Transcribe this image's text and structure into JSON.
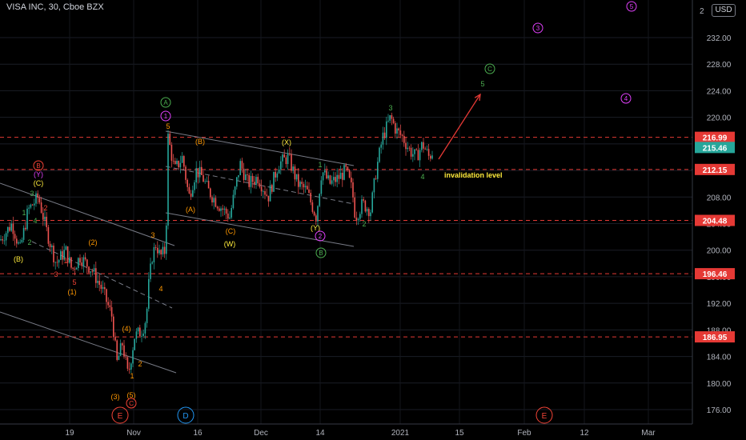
{
  "header": {
    "title": "VISA INC, 30, Cboe BZX",
    "currency": "USD"
  },
  "chart_data": {
    "type": "candlestick",
    "title": "VISA INC, 30, Cboe BZX",
    "ylim": [
      174,
      236
    ],
    "y_ticks": [
      "176.00",
      "180.00",
      "184.00",
      "188.00",
      "192.00",
      "196.00",
      "200.00",
      "204.00",
      "208.00",
      "212.00",
      "216.00",
      "220.00",
      "224.00",
      "228.00",
      "232.00"
    ],
    "y_top_partial": "2",
    "x_ticks": [
      {
        "label": "19",
        "x": 87
      },
      {
        "label": "Nov",
        "x": 167
      },
      {
        "label": "16",
        "x": 247
      },
      {
        "label": "Dec",
        "x": 326
      },
      {
        "label": "14",
        "x": 400
      },
      {
        "label": "2021",
        "x": 500
      },
      {
        "label": "15",
        "x": 574
      },
      {
        "label": "Feb",
        "x": 655
      },
      {
        "label": "12",
        "x": 730
      },
      {
        "label": "Mar",
        "x": 810
      }
    ],
    "levels": [
      {
        "value": 216.99,
        "label": "216.99",
        "kind": "red"
      },
      {
        "value": 215.46,
        "label": "215.46",
        "kind": "green"
      },
      {
        "value": 212.15,
        "label": "212.15",
        "kind": "red"
      },
      {
        "value": 204.48,
        "label": "204.48",
        "kind": "red"
      },
      {
        "value": 196.46,
        "label": "196.46",
        "kind": "red"
      },
      {
        "value": 186.95,
        "label": "186.95",
        "kind": "red"
      }
    ],
    "price_path": [
      [
        0,
        201.5
      ],
      [
        15,
        204
      ],
      [
        25,
        200
      ],
      [
        35,
        206
      ],
      [
        48,
        208
      ],
      [
        58,
        203
      ],
      [
        70,
        198
      ],
      [
        82,
        200
      ],
      [
        90,
        197
      ],
      [
        100,
        199
      ],
      [
        115,
        197
      ],
      [
        128,
        194
      ],
      [
        140,
        190
      ],
      [
        146,
        183
      ],
      [
        153,
        186
      ],
      [
        160,
        181
      ],
      [
        168,
        187
      ],
      [
        178,
        188
      ],
      [
        183,
        190
      ],
      [
        185,
        194
      ],
      [
        190,
        199
      ],
      [
        195,
        201
      ],
      [
        200,
        199
      ],
      [
        207,
        200
      ],
      [
        210,
        217
      ],
      [
        218,
        212
      ],
      [
        228,
        214
      ],
      [
        236,
        208
      ],
      [
        245,
        212
      ],
      [
        253,
        211
      ],
      [
        260,
        209
      ],
      [
        272,
        207
      ],
      [
        287,
        205
      ],
      [
        300,
        213
      ],
      [
        310,
        210
      ],
      [
        322,
        211
      ],
      [
        335,
        208
      ],
      [
        348,
        213
      ],
      [
        360,
        214
      ],
      [
        372,
        210
      ],
      [
        383,
        209
      ],
      [
        395,
        205
      ],
      [
        402,
        212
      ],
      [
        412,
        210
      ],
      [
        424,
        211
      ],
      [
        432,
        212
      ],
      [
        440,
        209
      ],
      [
        444,
        205
      ],
      [
        453,
        207
      ],
      [
        463,
        206
      ],
      [
        470,
        212
      ],
      [
        478,
        217
      ],
      [
        488,
        220
      ],
      [
        495,
        218
      ],
      [
        503,
        217
      ],
      [
        512,
        215
      ],
      [
        520,
        214
      ],
      [
        528,
        216
      ],
      [
        536,
        214
      ],
      [
        541,
        215
      ]
    ],
    "annotations": [
      {
        "text": "A",
        "x": 207,
        "y": 128,
        "color": "#4caf50",
        "circle": true
      },
      {
        "text": "1",
        "x": 207,
        "y": 145,
        "color": "#e040fb",
        "circle": true
      },
      {
        "text": "5",
        "x": 210,
        "y": 158,
        "color": "#ff9800"
      },
      {
        "text": "(B)",
        "x": 250,
        "y": 177,
        "color": "#ff9800"
      },
      {
        "text": "(X)",
        "x": 358,
        "y": 178,
        "color": "#ffeb3b"
      },
      {
        "text": "1",
        "x": 400,
        "y": 206,
        "color": "#4caf50"
      },
      {
        "text": "(A)",
        "x": 238,
        "y": 262,
        "color": "#ff9800"
      },
      {
        "text": "(C)",
        "x": 288,
        "y": 289,
        "color": "#ff9800"
      },
      {
        "text": "(W)",
        "x": 287,
        "y": 305,
        "color": "#ffeb3b"
      },
      {
        "text": "(Y)",
        "x": 394,
        "y": 285,
        "color": "#ffeb3b"
      },
      {
        "text": "2",
        "x": 400,
        "y": 295,
        "color": "#e040fb",
        "circle": true
      },
      {
        "text": "B",
        "x": 401,
        "y": 316,
        "color": "#4caf50",
        "circle": true
      },
      {
        "text": "2",
        "x": 455,
        "y": 280,
        "color": "#4caf50"
      },
      {
        "text": "3",
        "x": 488,
        "y": 135,
        "color": "#4caf50"
      },
      {
        "text": "4",
        "x": 528,
        "y": 221,
        "color": "#4caf50"
      },
      {
        "text": "invalidation level",
        "x": 555,
        "y": 219,
        "color": "#ffeb3b",
        "anchor": "start",
        "bold": true
      },
      {
        "text": "5",
        "x": 603,
        "y": 105,
        "color": "#4caf50"
      },
      {
        "text": "C",
        "x": 612,
        "y": 86,
        "color": "#4caf50",
        "circle": true
      },
      {
        "text": "3",
        "x": 672,
        "y": 35,
        "color": "#e040fb",
        "circle": true
      },
      {
        "text": "4",
        "x": 782,
        "y": 123,
        "color": "#e040fb",
        "circle": true
      },
      {
        "text": "5",
        "x": 789,
        "y": 8,
        "color": "#e040fb",
        "circle": true
      },
      {
        "text": "B",
        "x": 48,
        "y": 207,
        "color": "#f44336",
        "circle": true
      },
      {
        "text": "(Y)",
        "x": 48,
        "y": 218,
        "color": "#e040fb"
      },
      {
        "text": "(C)",
        "x": 48,
        "y": 229,
        "color": "#ffeb3b"
      },
      {
        "text": "3",
        "x": 40,
        "y": 242,
        "color": "#4caf50"
      },
      {
        "text": "4",
        "x": 44,
        "y": 276,
        "color": "#4caf50"
      },
      {
        "text": "2",
        "x": 57,
        "y": 260,
        "color": "#f44336"
      },
      {
        "text": "1",
        "x": 30,
        "y": 266,
        "color": "#4caf50"
      },
      {
        "text": "2",
        "x": 37,
        "y": 303,
        "color": "#4caf50"
      },
      {
        "text": "(B)",
        "x": 23,
        "y": 324,
        "color": "#ffeb3b"
      },
      {
        "text": "3",
        "x": 70,
        "y": 343,
        "color": "#f44336"
      },
      {
        "text": "1",
        "x": 82,
        "y": 326,
        "color": "#f44336"
      },
      {
        "text": "5",
        "x": 93,
        "y": 353,
        "color": "#f44336"
      },
      {
        "text": "(1)",
        "x": 90,
        "y": 365,
        "color": "#ff9800"
      },
      {
        "text": "(2)",
        "x": 116,
        "y": 303,
        "color": "#ff9800"
      },
      {
        "text": "3",
        "x": 191,
        "y": 294,
        "color": "#ff9800"
      },
      {
        "text": "4",
        "x": 201,
        "y": 361,
        "color": "#ff9800"
      },
      {
        "text": "(4)",
        "x": 158,
        "y": 411,
        "color": "#ff9800"
      },
      {
        "text": "2",
        "x": 175,
        "y": 455,
        "color": "#ff9800"
      },
      {
        "text": "1",
        "x": 165,
        "y": 470,
        "color": "#ff9800"
      },
      {
        "text": "(3)",
        "x": 144,
        "y": 496,
        "color": "#ff9800"
      },
      {
        "text": "(5)",
        "x": 164,
        "y": 494,
        "color": "#ff9800"
      },
      {
        "text": "C",
        "x": 164,
        "y": 504,
        "color": "#f44336",
        "circle": true
      },
      {
        "text": "E",
        "x": 150,
        "y": 519,
        "color": "#f44336",
        "circle": true,
        "big": true
      },
      {
        "text": "D",
        "x": 232,
        "y": 519,
        "color": "#2196f3",
        "circle": true,
        "big": true
      },
      {
        "text": "E",
        "x": 680,
        "y": 519,
        "color": "#f44336",
        "circle": true,
        "big": true
      }
    ],
    "trendlines": [
      [
        [
          0,
          229
        ],
        [
          218,
          307
        ]
      ],
      [
        [
          0,
          390
        ],
        [
          220,
          466
        ]
      ],
      [
        [
          40,
          302
        ],
        [
          215,
          385
        ]
      ],
      [
        [
          207,
          164
        ],
        [
          442,
          207
        ]
      ],
      [
        [
          207,
          266
        ],
        [
          442,
          308
        ]
      ],
      [
        [
          207,
          208
        ],
        [
          442,
          255
        ]
      ]
    ],
    "forecast_arrow": [
      [
        548,
        199
      ],
      [
        600,
        118
      ]
    ]
  }
}
